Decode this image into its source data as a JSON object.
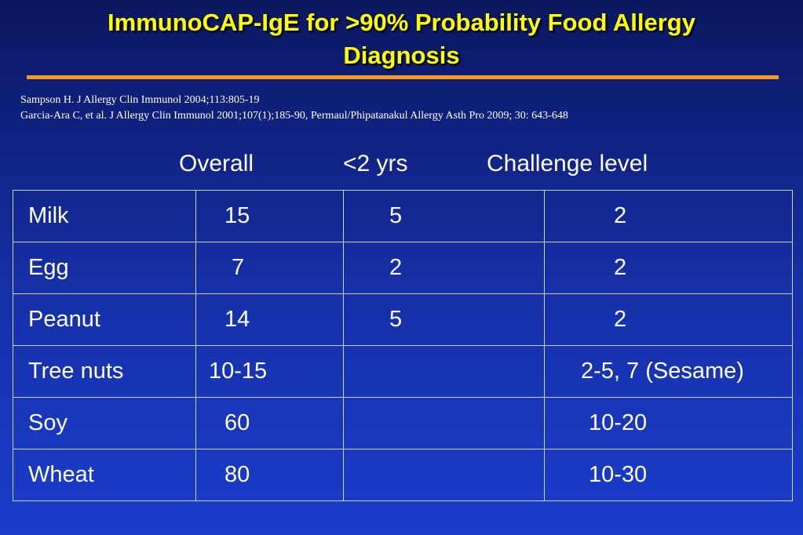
{
  "title": {
    "line1": "ImmunoCAP-IgE for >90% Probability Food Allergy",
    "line2": "Diagnosis"
  },
  "references": [
    "Sampson H. J Allergy Clin Immunol 2004;113:805-19",
    "Garcia-Ara C, et al. J Allergy Clin Immunol 2001;107(1);185-90, Permaul/Phipatanakul Allergy Asth Pro 2009; 30: 643-648"
  ],
  "columns": {
    "overall": "Overall",
    "under2": "<2 yrs",
    "challenge": "Challenge level"
  },
  "rows": [
    {
      "food": "Milk",
      "overall": "15",
      "under2": "5",
      "challenge": "2"
    },
    {
      "food": "Egg",
      "overall": "7",
      "under2": "2",
      "challenge": "2"
    },
    {
      "food": "Peanut",
      "overall": "14",
      "under2": "5",
      "challenge": "2"
    },
    {
      "food": "Tree nuts",
      "overall": "10-15",
      "under2": "",
      "challenge": "2-5, 7 (Sesame)"
    },
    {
      "food": "Soy",
      "overall": "60",
      "under2": "",
      "challenge": "10-20"
    },
    {
      "food": "Wheat",
      "overall": "80",
      "under2": "",
      "challenge": "10-30"
    }
  ],
  "colors": {
    "title": "#ffff00",
    "rule": "#f79a1e",
    "background": "#1630a8",
    "text": "#ffffff"
  }
}
